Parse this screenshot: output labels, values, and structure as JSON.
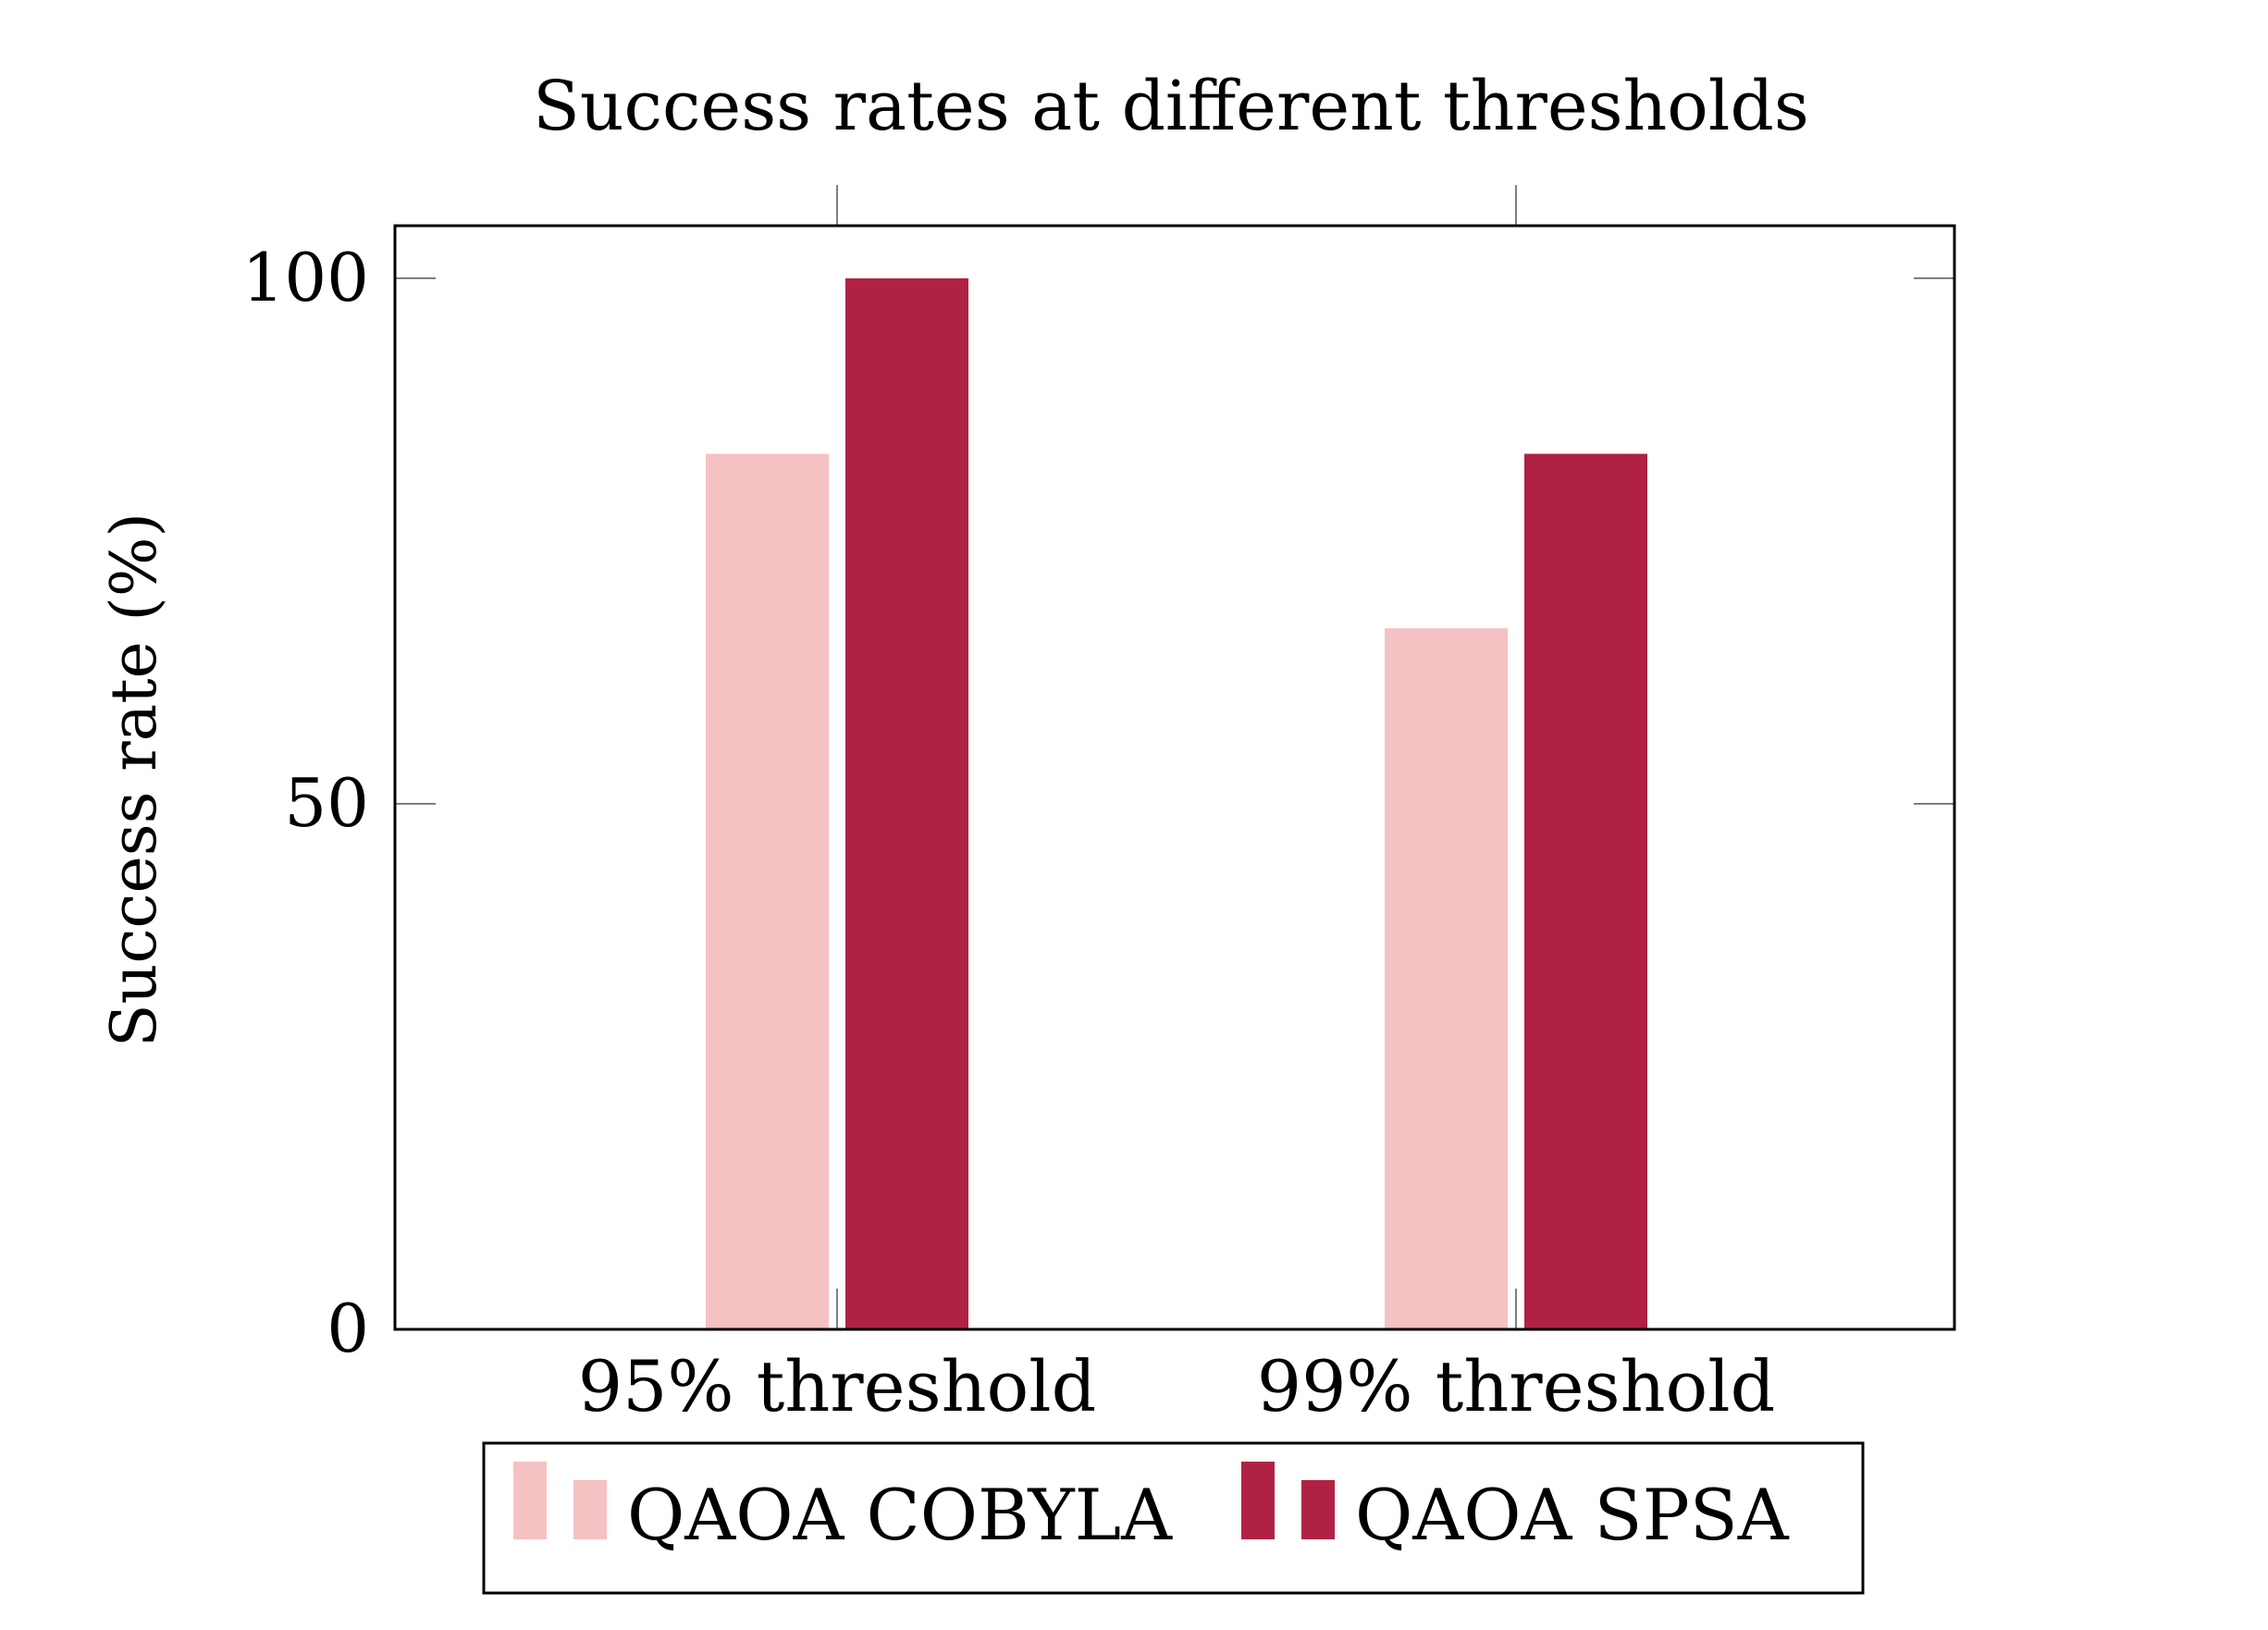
{
  "chart_data": {
    "type": "bar",
    "title": "Success rates at different thresholds",
    "xlabel": "",
    "ylabel": "Success rate (%)",
    "categories": [
      "95% threshold",
      "99% threshold"
    ],
    "series": [
      {
        "name": "QAOA COBYLA",
        "values": [
          83.3,
          66.7
        ],
        "color": "#f4c2c2"
      },
      {
        "name": "QAOA SPSA",
        "values": [
          100,
          83.3
        ],
        "color": "#b02244"
      }
    ],
    "ylim": [
      0,
      105
    ],
    "yticks": [
      0,
      50,
      100
    ],
    "grid": false,
    "legend": "bottom-center"
  }
}
